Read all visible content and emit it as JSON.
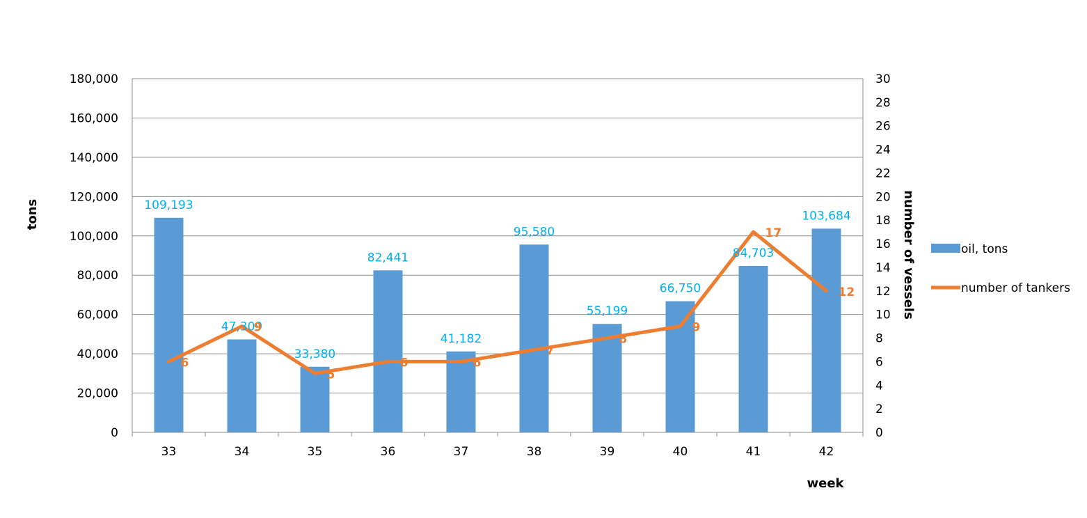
{
  "chart_data": {
    "type": "bar",
    "categories": [
      "33",
      "34",
      "35",
      "36",
      "37",
      "38",
      "39",
      "40",
      "41",
      "42"
    ],
    "series": [
      {
        "name": "oil, tons",
        "kind": "bar",
        "axis": "left",
        "values": [
          109193,
          47309,
          33380,
          82441,
          41182,
          95580,
          55199,
          66750,
          84703,
          103684
        ],
        "labels": [
          "109,193",
          "47,309",
          "33,380",
          "82,441",
          "41,182",
          "95,580",
          "55,199",
          "66,750",
          "84,703",
          "103,684"
        ],
        "color": "#5B9BD5",
        "label_color": "#00B0F0"
      },
      {
        "name": "number of tankers",
        "kind": "line",
        "axis": "right",
        "values": [
          6,
          9,
          5,
          6,
          6,
          7,
          8,
          9,
          17,
          12
        ],
        "labels": [
          "6",
          "9",
          "5",
          "6",
          "6",
          "7",
          "8",
          "9",
          "17",
          "12"
        ],
        "color": "#ED7D31",
        "label_color": "#ED7D31"
      }
    ],
    "xlabel": "week",
    "ylabel": "tons",
    "y2label": "number of vessels",
    "ylim": [
      0,
      180000
    ],
    "y2lim": [
      0,
      30
    ],
    "yticks": [
      "0",
      "20,000",
      "40,000",
      "60,000",
      "80,000",
      "100,000",
      "120,000",
      "140,000",
      "160,000",
      "180,000"
    ],
    "y2ticks": [
      "0",
      "2",
      "4",
      "6",
      "8",
      "10",
      "12",
      "14",
      "16",
      "18",
      "20",
      "22",
      "24",
      "26",
      "28",
      "30"
    ],
    "grid": true,
    "legend": "right"
  }
}
